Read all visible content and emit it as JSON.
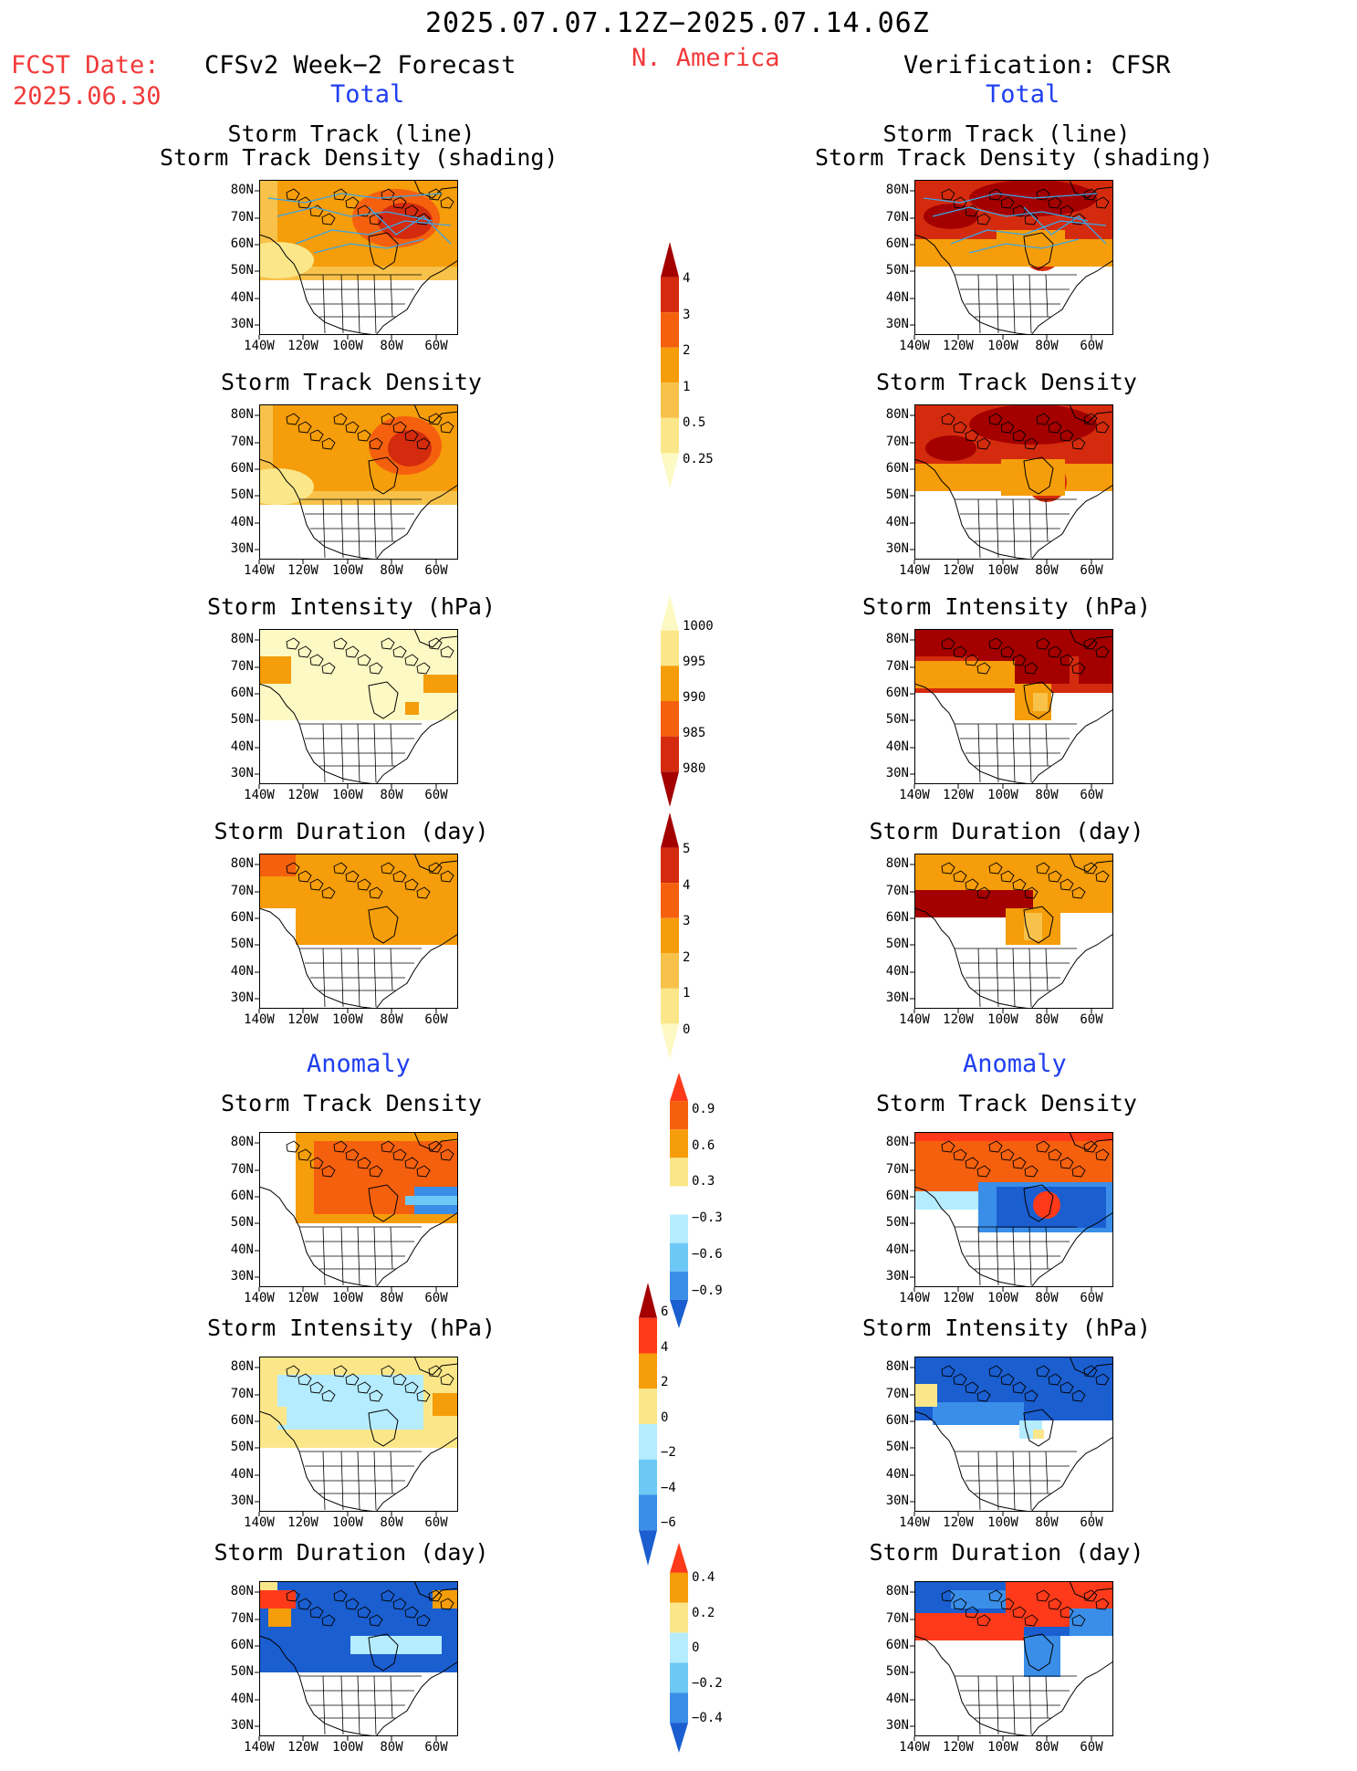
{
  "header": {
    "period": "2025.07.07.12Z−2025.07.14.06Z",
    "region": "N. America",
    "fcst_label": "FCST Date:",
    "fcst_date": "2025.06.30",
    "left_title": "CFSv2 Week−2 Forecast",
    "right_title": "Verification: CFSR"
  },
  "sections": {
    "total": "Total",
    "anomaly": "Anomaly"
  },
  "panel_titles": {
    "track_line": "Storm Track (line)",
    "track_density_shading": "Storm Track Density (shading)",
    "track_density": "Storm Track Density",
    "intensity": "Storm Intensity (hPa)",
    "duration": "Storm Duration (day)"
  },
  "axes": {
    "lat_ticks": [
      "80N",
      "70N",
      "60N",
      "50N",
      "40N",
      "30N"
    ],
    "lon_ticks": [
      "140W",
      "120W",
      "100W",
      "80W",
      "60W"
    ]
  },
  "colorbars": [
    {
      "name": "total-density",
      "labels": [
        "4",
        "3",
        "2",
        "1",
        "0.5",
        "0.25"
      ],
      "colors": [
        "#a40000",
        "#d42b0e",
        "#f5600e",
        "#f59d0a",
        "#f8c24a",
        "#fbe78a",
        "#fdf9c4"
      ],
      "ends": "both-top"
    },
    {
      "name": "total-intensity",
      "labels": [
        "1000",
        "995",
        "990",
        "985",
        "980"
      ],
      "colors": [
        "#fdf9c4",
        "#fbe78a",
        "#f59d0a",
        "#f5600e",
        "#d42b0e",
        "#a40000"
      ],
      "ends": "both-bottom"
    },
    {
      "name": "total-duration",
      "labels": [
        "5",
        "4",
        "3",
        "2",
        "1",
        "0"
      ],
      "colors": [
        "#a40000",
        "#d42b0e",
        "#f5600e",
        "#f59d0a",
        "#f8c24a",
        "#fbe78a",
        "#fdf9c4"
      ],
      "ends": "both-top"
    },
    {
      "name": "anom-density",
      "labels": [
        "0.9",
        "0.6",
        "0.3",
        "−0.3",
        "−0.6",
        "−0.9"
      ],
      "colors": [
        "#ff3a1a",
        "#f5600e",
        "#f59d0a",
        "#fbe78a",
        "#ffffff",
        "#b5ecff",
        "#6ec8f5",
        "#3a8ee8",
        "#1a5ed0"
      ],
      "ends": "diverging"
    },
    {
      "name": "anom-intensity",
      "labels": [
        "6",
        "4",
        "2",
        "0",
        "−2",
        "−4",
        "−6"
      ],
      "colors": [
        "#a40000",
        "#ff3a1a",
        "#f59d0a",
        "#fbe78a",
        "#b5ecff",
        "#6ec8f5",
        "#3a8ee8",
        "#1a5ed0"
      ],
      "ends": "diverging"
    },
    {
      "name": "anom-duration",
      "labels": [
        "0.4",
        "0.2",
        "0",
        "−0.2",
        "−0.4"
      ],
      "colors": [
        "#ff3a1a",
        "#f59d0a",
        "#fbe78a",
        "#b5ecff",
        "#6ec8f5",
        "#3a8ee8",
        "#1a5ed0"
      ],
      "ends": "diverging"
    }
  ],
  "colors": {
    "header_red": "#f23a3a",
    "label_blue": "#1f3ff0",
    "track_line": "#3aa6e6"
  }
}
